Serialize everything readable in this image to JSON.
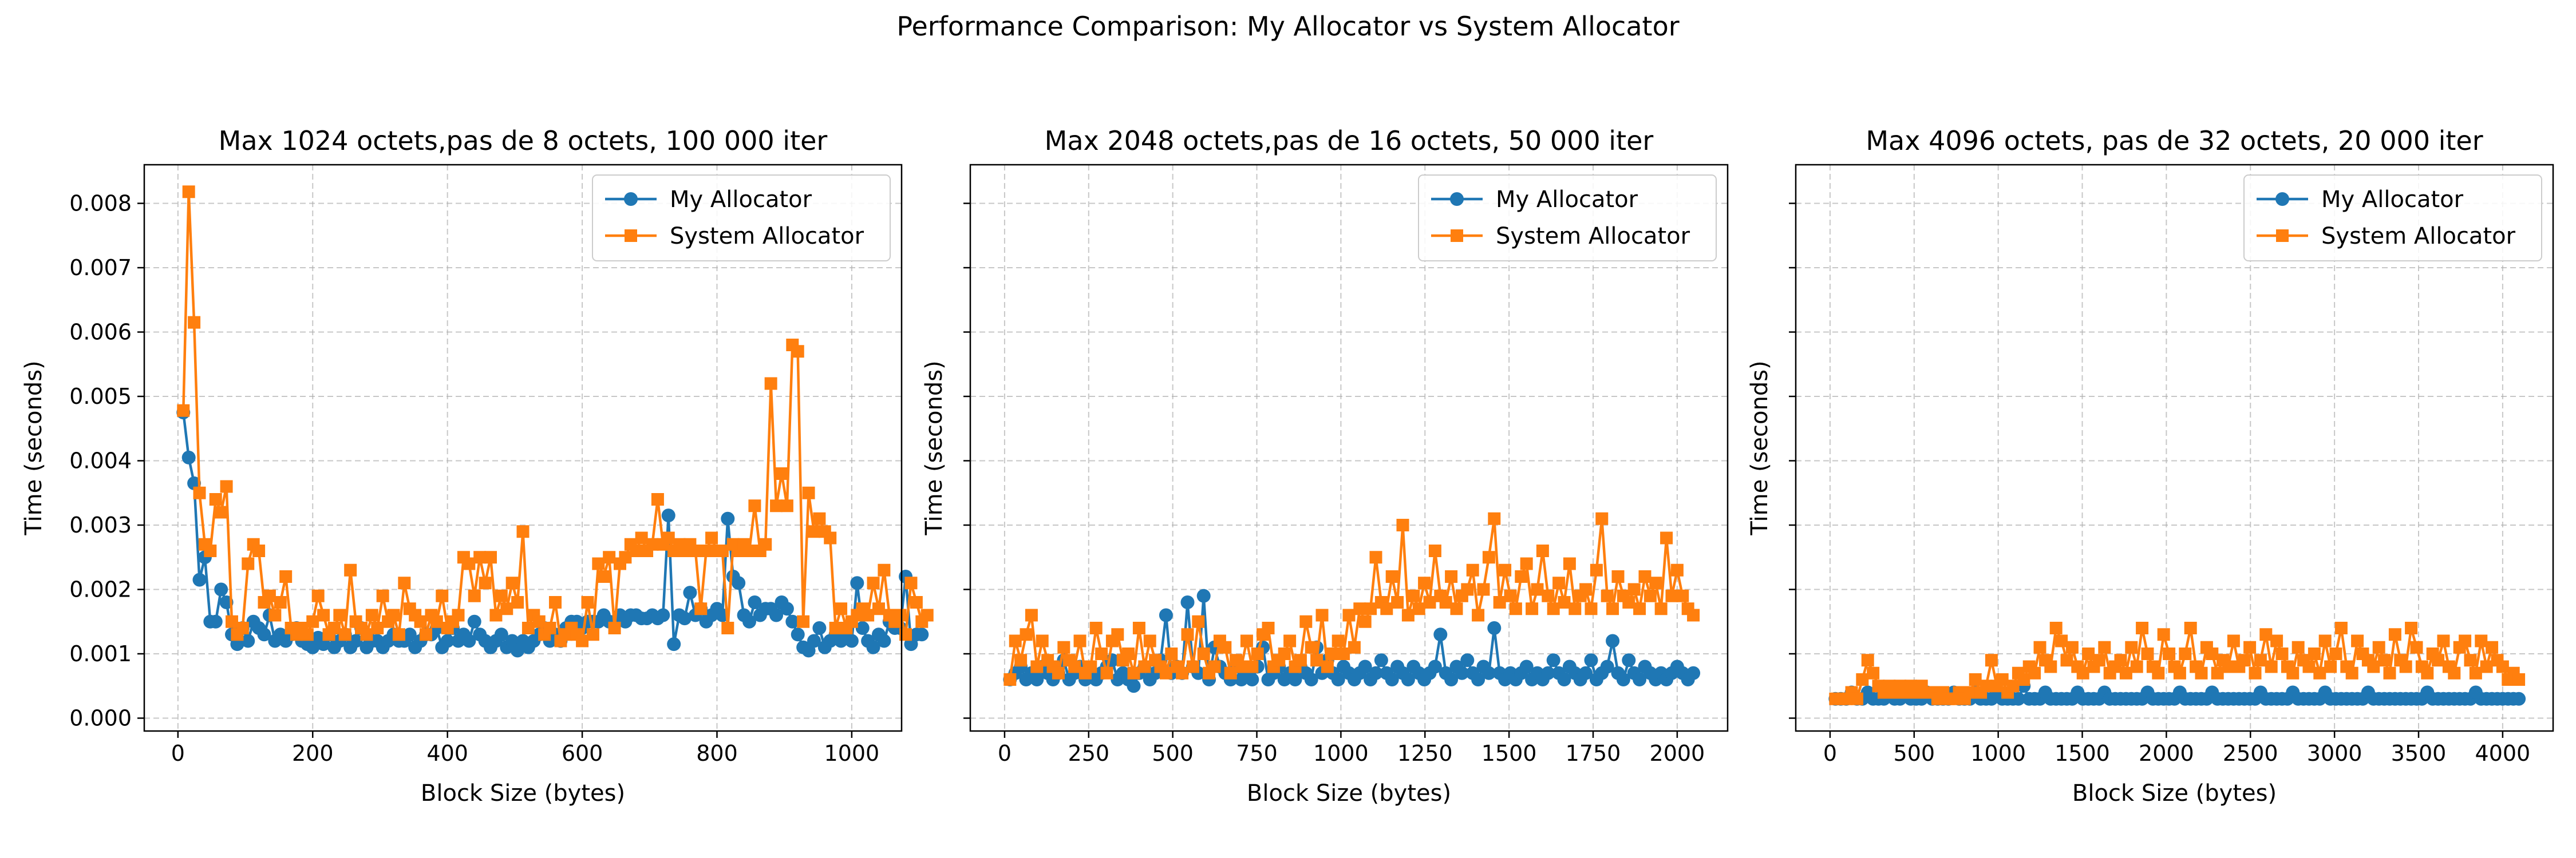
{
  "figure": {
    "suptitle": "Performance Comparison: My Allocator vs System Allocator"
  },
  "colors": {
    "my_allocator": "#1f77b4",
    "system_allocator": "#ff7f0e",
    "grid": "#b0b0b0"
  },
  "chart_data": [
    {
      "type": "line",
      "title": "Max 1024 octets,pas de 8 octets, 100 000 iter",
      "xlabel": "Block Size (bytes)",
      "ylabel": "Time (seconds)",
      "xlim": [
        -50,
        1074
      ],
      "ylim": [
        -0.0002,
        0.0086
      ],
      "xticks": [
        0,
        200,
        400,
        600,
        800,
        1000
      ],
      "yticks": [
        0.0,
        0.001,
        0.002,
        0.003,
        0.004,
        0.005,
        0.006,
        0.007,
        0.008
      ],
      "ytick_labels": [
        "0.000",
        "0.001",
        "0.002",
        "0.003",
        "0.004",
        "0.005",
        "0.006",
        "0.007",
        "0.008"
      ],
      "show_ytick_labels": true,
      "grid": true,
      "legend": "upper right",
      "series": [
        {
          "name": "My Allocator",
          "marker": "circle",
          "color": "#1f77b4",
          "x_start": 8,
          "x_step": 8,
          "values": [
            0.00475,
            0.00405,
            0.00365,
            0.00215,
            0.0025,
            0.0015,
            0.0015,
            0.002,
            0.0018,
            0.0013,
            0.00115,
            0.0014,
            0.0012,
            0.0015,
            0.0014,
            0.0013,
            0.0016,
            0.0012,
            0.0013,
            0.0012,
            0.0013,
            0.0014,
            0.0012,
            0.00115,
            0.0011,
            0.00125,
            0.00115,
            0.0013,
            0.0011,
            0.0012,
            0.0013,
            0.0011,
            0.0012,
            0.0014,
            0.0011,
            0.0012,
            0.0012,
            0.0011,
            0.0012,
            0.0013,
            0.0012,
            0.0012,
            0.0013,
            0.0011,
            0.0012,
            0.0013,
            0.0013,
            0.0014,
            0.0011,
            0.0012,
            0.0014,
            0.0012,
            0.0013,
            0.0012,
            0.0015,
            0.0013,
            0.0012,
            0.0011,
            0.0012,
            0.0013,
            0.0011,
            0.0012,
            0.00105,
            0.0012,
            0.0011,
            0.0012,
            0.0013,
            0.0014,
            0.0012,
            0.0013,
            0.0012,
            0.0014,
            0.0015,
            0.0015,
            0.0014,
            0.0015,
            0.0015,
            0.0015,
            0.0016,
            0.0015,
            0.0015,
            0.0016,
            0.0015,
            0.0016,
            0.0016,
            0.00155,
            0.00155,
            0.0016,
            0.00155,
            0.0016,
            0.00315,
            0.00115,
            0.0016,
            0.00155,
            0.00195,
            0.0016,
            0.0017,
            0.0015,
            0.0016,
            0.0017,
            0.0016,
            0.0031,
            0.0022,
            0.0021,
            0.0016,
            0.0015,
            0.0018,
            0.0016,
            0.0017,
            0.0017,
            0.0016,
            0.0018,
            0.0017,
            0.0015,
            0.0013,
            0.0011,
            0.00105,
            0.0012,
            0.0014,
            0.0011,
            0.0012,
            0.0013,
            0.0012,
            0.0013,
            0.0012,
            0.0021,
            0.0014,
            0.0012,
            0.0011,
            0.0013,
            0.0012,
            0.0015,
            0.0014,
            0.0014,
            0.0022,
            0.00115,
            0.0013,
            0.0013
          ]
        },
        {
          "name": "System Allocator",
          "marker": "square",
          "color": "#ff7f0e",
          "x_start": 8,
          "x_step": 8,
          "values": [
            0.00478,
            0.00818,
            0.00615,
            0.0035,
            0.0027,
            0.0026,
            0.0034,
            0.0032,
            0.0036,
            0.0015,
            0.0013,
            0.0014,
            0.0024,
            0.0027,
            0.0026,
            0.0018,
            0.0019,
            0.0016,
            0.0018,
            0.0022,
            0.0014,
            0.0013,
            0.0014,
            0.0013,
            0.0015,
            0.0019,
            0.0016,
            0.0013,
            0.0014,
            0.0016,
            0.0013,
            0.0023,
            0.0015,
            0.0014,
            0.0013,
            0.0016,
            0.0014,
            0.0019,
            0.0015,
            0.0016,
            0.0013,
            0.0021,
            0.0017,
            0.0016,
            0.0015,
            0.0013,
            0.0016,
            0.0015,
            0.0019,
            0.0014,
            0.0015,
            0.0016,
            0.0025,
            0.0024,
            0.0019,
            0.0025,
            0.0021,
            0.0025,
            0.0016,
            0.0019,
            0.0017,
            0.0021,
            0.0018,
            0.0029,
            0.0014,
            0.0016,
            0.0015,
            0.0013,
            0.0014,
            0.0018,
            0.0012,
            0.0013,
            0.0014,
            0.0013,
            0.0012,
            0.0018,
            0.0013,
            0.0024,
            0.0022,
            0.0025,
            0.0014,
            0.0024,
            0.0025,
            0.0027,
            0.0026,
            0.0028,
            0.0026,
            0.0027,
            0.0034,
            0.0027,
            0.0028,
            0.0026,
            0.0027,
            0.0026,
            0.0027,
            0.0026,
            0.0017,
            0.0026,
            0.0028,
            0.0026,
            0.0026,
            0.0014,
            0.0027,
            0.0026,
            0.0027,
            0.0026,
            0.0033,
            0.0026,
            0.0027,
            0.0052,
            0.0033,
            0.0038,
            0.0033,
            0.0058,
            0.0057,
            0.0015,
            0.0035,
            0.0029,
            0.0031,
            0.0029,
            0.0028,
            0.0014,
            0.0017,
            0.0014,
            0.0015,
            0.0016,
            0.0017,
            0.0016,
            0.0021,
            0.0017,
            0.0023,
            0.0016,
            0.0015,
            0.0016,
            0.0013,
            0.0021,
            0.0018,
            0.0015,
            0.0016
          ]
        }
      ]
    },
    {
      "type": "line",
      "title": "Max 2048 octets,pas de 16 octets, 50 000 iter",
      "xlabel": "Block Size (bytes)",
      "ylabel": "Time (seconds)",
      "xlim": [
        -102,
        2150
      ],
      "ylim": [
        -0.0002,
        0.0086
      ],
      "xticks": [
        0,
        250,
        500,
        750,
        1000,
        1250,
        1500,
        1750,
        2000
      ],
      "yticks": [
        0.0,
        0.001,
        0.002,
        0.003,
        0.004,
        0.005,
        0.006,
        0.007,
        0.008
      ],
      "show_ytick_labels": false,
      "grid": true,
      "legend": "upper right",
      "series": [
        {
          "name": "My Allocator",
          "marker": "circle",
          "color": "#1f77b4",
          "x_start": 16,
          "x_step": 16,
          "values": [
            0.0006,
            0.0007,
            0.0008,
            0.0006,
            0.0007,
            0.0006,
            0.0008,
            0.0007,
            0.0006,
            0.0007,
            0.0009,
            0.0006,
            0.0007,
            0.0008,
            0.0006,
            0.0007,
            0.0006,
            0.0007,
            0.0008,
            0.0009,
            0.0006,
            0.0007,
            0.0006,
            0.0005,
            0.0007,
            0.0008,
            0.0006,
            0.0007,
            0.0009,
            0.0016,
            0.0007,
            0.0008,
            0.0007,
            0.0018,
            0.0008,
            0.0007,
            0.0019,
            0.0006,
            0.0011,
            0.0008,
            0.0007,
            0.0006,
            0.0008,
            0.0006,
            0.0007,
            0.0006,
            0.0008,
            0.0011,
            0.0006,
            0.0007,
            0.0008,
            0.0006,
            0.0007,
            0.0006,
            0.0008,
            0.0007,
            0.0006,
            0.0011,
            0.0007,
            0.0009,
            0.0007,
            0.0006,
            0.0008,
            0.0007,
            0.0006,
            0.0007,
            0.0008,
            0.0006,
            0.0007,
            0.0009,
            0.0007,
            0.0006,
            0.0008,
            0.0007,
            0.0006,
            0.0008,
            0.0007,
            0.0006,
            0.0007,
            0.0008,
            0.0013,
            0.0007,
            0.0006,
            0.0008,
            0.0007,
            0.0009,
            0.0007,
            0.0006,
            0.0008,
            0.0007,
            0.0014,
            0.0007,
            0.0006,
            0.0007,
            0.0006,
            0.0007,
            0.0008,
            0.0006,
            0.0007,
            0.0006,
            0.0007,
            0.0009,
            0.0007,
            0.0006,
            0.0008,
            0.0007,
            0.0006,
            0.0007,
            0.0009,
            0.0006,
            0.0007,
            0.0008,
            0.0012,
            0.0007,
            0.0006,
            0.0009,
            0.0007,
            0.0006,
            0.0008,
            0.0007,
            0.0006,
            0.0007,
            0.0006,
            0.0007,
            0.0008,
            0.0007,
            0.0006,
            0.0007
          ]
        },
        {
          "name": "System Allocator",
          "marker": "square",
          "color": "#ff7f0e",
          "x_start": 16,
          "x_step": 16,
          "values": [
            0.0006,
            0.0012,
            0.0009,
            0.0013,
            0.0016,
            0.0008,
            0.0012,
            0.0009,
            0.0008,
            0.0007,
            0.0011,
            0.0009,
            0.0008,
            0.0012,
            0.0007,
            0.0008,
            0.0014,
            0.001,
            0.0007,
            0.0012,
            0.0013,
            0.0009,
            0.001,
            0.0007,
            0.0014,
            0.0008,
            0.0012,
            0.0009,
            0.0008,
            0.0007,
            0.001,
            0.0008,
            0.0007,
            0.0013,
            0.0008,
            0.0015,
            0.001,
            0.0007,
            0.0008,
            0.0012,
            0.0011,
            0.0007,
            0.0009,
            0.0008,
            0.0012,
            0.0008,
            0.001,
            0.0013,
            0.0014,
            0.0008,
            0.0009,
            0.001,
            0.0012,
            0.0008,
            0.0009,
            0.0015,
            0.0011,
            0.0009,
            0.0016,
            0.0008,
            0.001,
            0.0012,
            0.001,
            0.0016,
            0.0011,
            0.0017,
            0.0015,
            0.0017,
            0.0025,
            0.0018,
            0.0017,
            0.0022,
            0.0018,
            0.003,
            0.0016,
            0.0019,
            0.0017,
            0.0021,
            0.0018,
            0.0026,
            0.0019,
            0.0018,
            0.0022,
            0.0017,
            0.0019,
            0.002,
            0.0023,
            0.0016,
            0.002,
            0.0025,
            0.0031,
            0.0018,
            0.0023,
            0.0019,
            0.0017,
            0.0022,
            0.0024,
            0.0017,
            0.002,
            0.0026,
            0.0019,
            0.0017,
            0.0021,
            0.0018,
            0.0024,
            0.0017,
            0.0019,
            0.002,
            0.0017,
            0.0023,
            0.0031,
            0.0019,
            0.0017,
            0.0022,
            0.0019,
            0.0018,
            0.002,
            0.0017,
            0.0022,
            0.0019,
            0.0021,
            0.0017,
            0.0028,
            0.0019,
            0.0023,
            0.0019,
            0.0017,
            0.0016
          ]
        }
      ]
    },
    {
      "type": "line",
      "title": "Max 4096 octets, pas de 32 octets, 20 000 iter",
      "xlabel": "Block Size (bytes)",
      "ylabel": "Time (seconds)",
      "xlim": [
        -204,
        4300
      ],
      "ylim": [
        -0.0002,
        0.0086
      ],
      "xticks": [
        0,
        500,
        1000,
        1500,
        2000,
        2500,
        3000,
        3500,
        4000
      ],
      "yticks": [
        0.0,
        0.001,
        0.002,
        0.003,
        0.004,
        0.005,
        0.006,
        0.007,
        0.008
      ],
      "show_ytick_labels": false,
      "grid": true,
      "legend": "upper right",
      "series": [
        {
          "name": "My Allocator",
          "marker": "circle",
          "color": "#1f77b4",
          "x_start": 32,
          "x_step": 32,
          "values": [
            0.0003,
            0.0003,
            0.0003,
            0.0004,
            0.0003,
            0.0003,
            0.0004,
            0.0003,
            0.0003,
            0.0003,
            0.0004,
            0.0003,
            0.0003,
            0.0004,
            0.0003,
            0.0003,
            0.0003,
            0.0004,
            0.0003,
            0.0003,
            0.0003,
            0.0003,
            0.0004,
            0.0003,
            0.0003,
            0.0003,
            0.0004,
            0.0003,
            0.0003,
            0.0003,
            0.0004,
            0.0003,
            0.0003,
            0.0003,
            0.0003,
            0.0005,
            0.0003,
            0.0003,
            0.0003,
            0.0004,
            0.0003,
            0.0003,
            0.0003,
            0.0003,
            0.0003,
            0.0004,
            0.0003,
            0.0003,
            0.0003,
            0.0003,
            0.0004,
            0.0003,
            0.0003,
            0.0003,
            0.0003,
            0.0003,
            0.0003,
            0.0003,
            0.0004,
            0.0003,
            0.0003,
            0.0003,
            0.0003,
            0.0003,
            0.0004,
            0.0003,
            0.0003,
            0.0003,
            0.0003,
            0.0003,
            0.0004,
            0.0003,
            0.0003,
            0.0003,
            0.0003,
            0.0003,
            0.0003,
            0.0003,
            0.0003,
            0.0004,
            0.0003,
            0.0003,
            0.0003,
            0.0003,
            0.0003,
            0.0004,
            0.0003,
            0.0003,
            0.0003,
            0.0003,
            0.0003,
            0.0004,
            0.0003,
            0.0003,
            0.0003,
            0.0003,
            0.0003,
            0.0003,
            0.0003,
            0.0004,
            0.0003,
            0.0003,
            0.0003,
            0.0003,
            0.0003,
            0.0003,
            0.0003,
            0.0003,
            0.0003,
            0.0003,
            0.0004,
            0.0003,
            0.0003,
            0.0003,
            0.0003,
            0.0003,
            0.0003,
            0.0003,
            0.0003,
            0.0004,
            0.0003,
            0.0003,
            0.0003,
            0.0003,
            0.0003,
            0.0003,
            0.0003,
            0.0003
          ]
        },
        {
          "name": "System Allocator",
          "marker": "square",
          "color": "#ff7f0e",
          "x_start": 32,
          "x_step": 32,
          "values": [
            0.0003,
            0.0003,
            0.0003,
            0.0004,
            0.0003,
            0.0006,
            0.0009,
            0.0007,
            0.0005,
            0.0004,
            0.0005,
            0.0004,
            0.0005,
            0.0004,
            0.0005,
            0.0004,
            0.0005,
            0.0004,
            0.0004,
            0.0003,
            0.0004,
            0.0003,
            0.0003,
            0.0004,
            0.0003,
            0.0004,
            0.0006,
            0.0004,
            0.0005,
            0.0009,
            0.0005,
            0.0006,
            0.0004,
            0.0005,
            0.0007,
            0.0006,
            0.0008,
            0.0007,
            0.0011,
            0.0009,
            0.0008,
            0.0014,
            0.0012,
            0.0009,
            0.0011,
            0.0008,
            0.0007,
            0.001,
            0.0008,
            0.0009,
            0.0011,
            0.0007,
            0.0008,
            0.0009,
            0.0007,
            0.0011,
            0.0008,
            0.0014,
            0.001,
            0.0008,
            0.0007,
            0.0013,
            0.001,
            0.0008,
            0.0007,
            0.001,
            0.0014,
            0.0008,
            0.0007,
            0.0011,
            0.001,
            0.0007,
            0.0009,
            0.0008,
            0.0012,
            0.0008,
            0.0009,
            0.0011,
            0.0007,
            0.0009,
            0.0013,
            0.0008,
            0.0012,
            0.001,
            0.0008,
            0.0007,
            0.0011,
            0.0009,
            0.0008,
            0.001,
            0.0007,
            0.0012,
            0.0008,
            0.001,
            0.0014,
            0.0008,
            0.0007,
            0.0012,
            0.001,
            0.0009,
            0.0008,
            0.0011,
            0.0009,
            0.0007,
            0.0013,
            0.0009,
            0.0008,
            0.0014,
            0.0011,
            0.0008,
            0.0007,
            0.001,
            0.0009,
            0.0012,
            0.0008,
            0.0007,
            0.0011,
            0.0012,
            0.0009,
            0.0007,
            0.0012,
            0.0008,
            0.0011,
            0.0009,
            0.0008,
            0.0006,
            0.0007,
            0.0006
          ]
        }
      ]
    }
  ]
}
